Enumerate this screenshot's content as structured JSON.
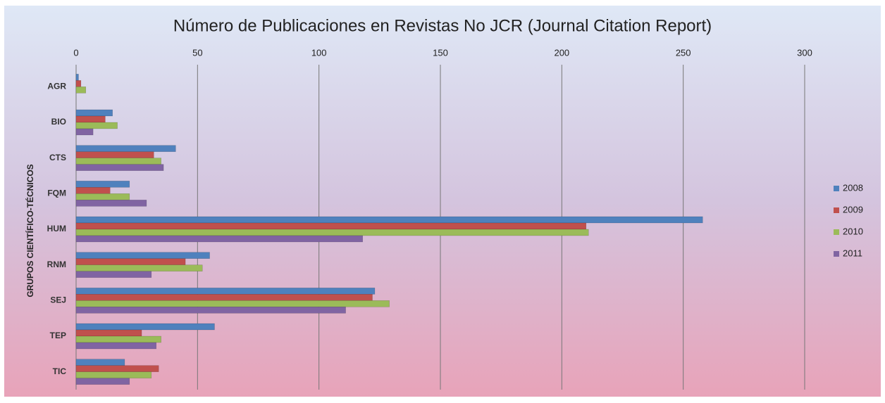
{
  "chart_data": {
    "type": "hbar",
    "title": "Número de Publicaciones en Revistas No JCR (Journal Citation Report)",
    "y_label": "GRUPOS CIENTÍFICO-TÉCNICOS",
    "categories": [
      "AGR",
      "BIO",
      "CTS",
      "FQM",
      "HUM",
      "RNM",
      "SEJ",
      "TEP",
      "TIC"
    ],
    "series": [
      {
        "name": "2008",
        "color": "#4f81bd",
        "values": [
          1,
          15,
          41,
          22,
          258,
          55,
          123,
          57,
          20
        ]
      },
      {
        "name": "2009",
        "color": "#c0504d",
        "values": [
          2,
          12,
          32,
          14,
          210,
          45,
          122,
          27,
          34
        ]
      },
      {
        "name": "2010",
        "color": "#9bbb59",
        "values": [
          4,
          17,
          35,
          22,
          211,
          52,
          129,
          35,
          31
        ]
      },
      {
        "name": "2011",
        "color": "#8064a2",
        "values": [
          0,
          7,
          36,
          29,
          118,
          31,
          111,
          33,
          22
        ]
      }
    ],
    "xlim": [
      0,
      300
    ],
    "xticks": [
      0,
      50,
      100,
      150,
      200,
      250,
      300
    ],
    "grid": true,
    "legend": "right"
  }
}
